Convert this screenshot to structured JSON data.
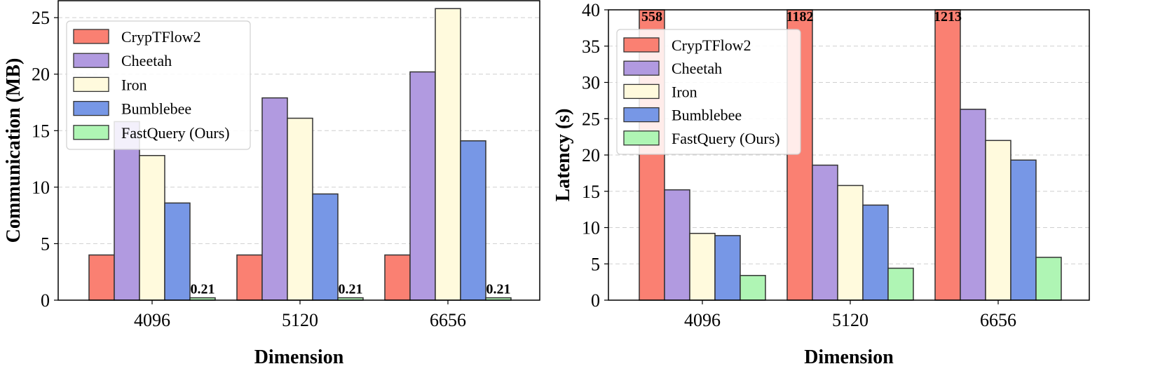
{
  "chart_data": [
    {
      "type": "bar",
      "categories": [
        "4096",
        "5120",
        "6656"
      ],
      "xlabel": "Dimension",
      "ylabel": "Communication (MB)",
      "ylim": [
        0,
        26.5
      ],
      "yticks": [
        "0",
        "5",
        "10",
        "15",
        "20",
        "25"
      ],
      "grid": "horizontal dashed",
      "legend_position": "top-left",
      "series": [
        {
          "name": "CrypTFlow2",
          "color": "#fa8072",
          "values": [
            4.0,
            4.0,
            4.0
          ]
        },
        {
          "name": "Cheetah",
          "color": "#b19ae0",
          "values": [
            15.8,
            17.9,
            20.2
          ]
        },
        {
          "name": "Iron",
          "color": "#fffadd",
          "values": [
            12.8,
            16.1,
            25.8
          ]
        },
        {
          "name": "Bumblebee",
          "color": "#7797e6",
          "values": [
            8.6,
            9.4,
            14.1
          ]
        },
        {
          "name": "FastQuery (Ours)",
          "color": "#aff5b4",
          "values": [
            0.21,
            0.21,
            0.21
          ]
        }
      ],
      "annotations": [
        {
          "series": "FastQuery (Ours)",
          "category": "4096",
          "text": "0.21"
        },
        {
          "series": "FastQuery (Ours)",
          "category": "5120",
          "text": "0.21"
        },
        {
          "series": "FastQuery (Ours)",
          "category": "6656",
          "text": "0.21"
        }
      ]
    },
    {
      "type": "bar",
      "categories": [
        "4096",
        "5120",
        "6656"
      ],
      "xlabel": "Dimension",
      "ylabel": "Latency (s)",
      "ylim": [
        0,
        40
      ],
      "yticks": [
        "0",
        "5",
        "10",
        "15",
        "20",
        "25",
        "30",
        "35",
        "40"
      ],
      "grid": "horizontal dashed",
      "legend_position": "top-left",
      "series": [
        {
          "name": "CrypTFlow2",
          "color": "#fa8072",
          "values": [
            558,
            1182,
            1213
          ]
        },
        {
          "name": "Cheetah",
          "color": "#b19ae0",
          "values": [
            15.2,
            18.6,
            26.3
          ]
        },
        {
          "name": "Iron",
          "color": "#fffadd",
          "values": [
            9.2,
            15.8,
            22.0
          ]
        },
        {
          "name": "Bumblebee",
          "color": "#7797e6",
          "values": [
            8.9,
            13.1,
            19.3
          ]
        },
        {
          "name": "FastQuery (Ours)",
          "color": "#aff5b4",
          "values": [
            3.4,
            4.4,
            5.9
          ]
        }
      ],
      "annotations": [
        {
          "series": "CrypTFlow2",
          "category": "4096",
          "text": "558"
        },
        {
          "series": "CrypTFlow2",
          "category": "5120",
          "text": "1182"
        },
        {
          "series": "CrypTFlow2",
          "category": "6656",
          "text": "1213"
        }
      ]
    }
  ]
}
